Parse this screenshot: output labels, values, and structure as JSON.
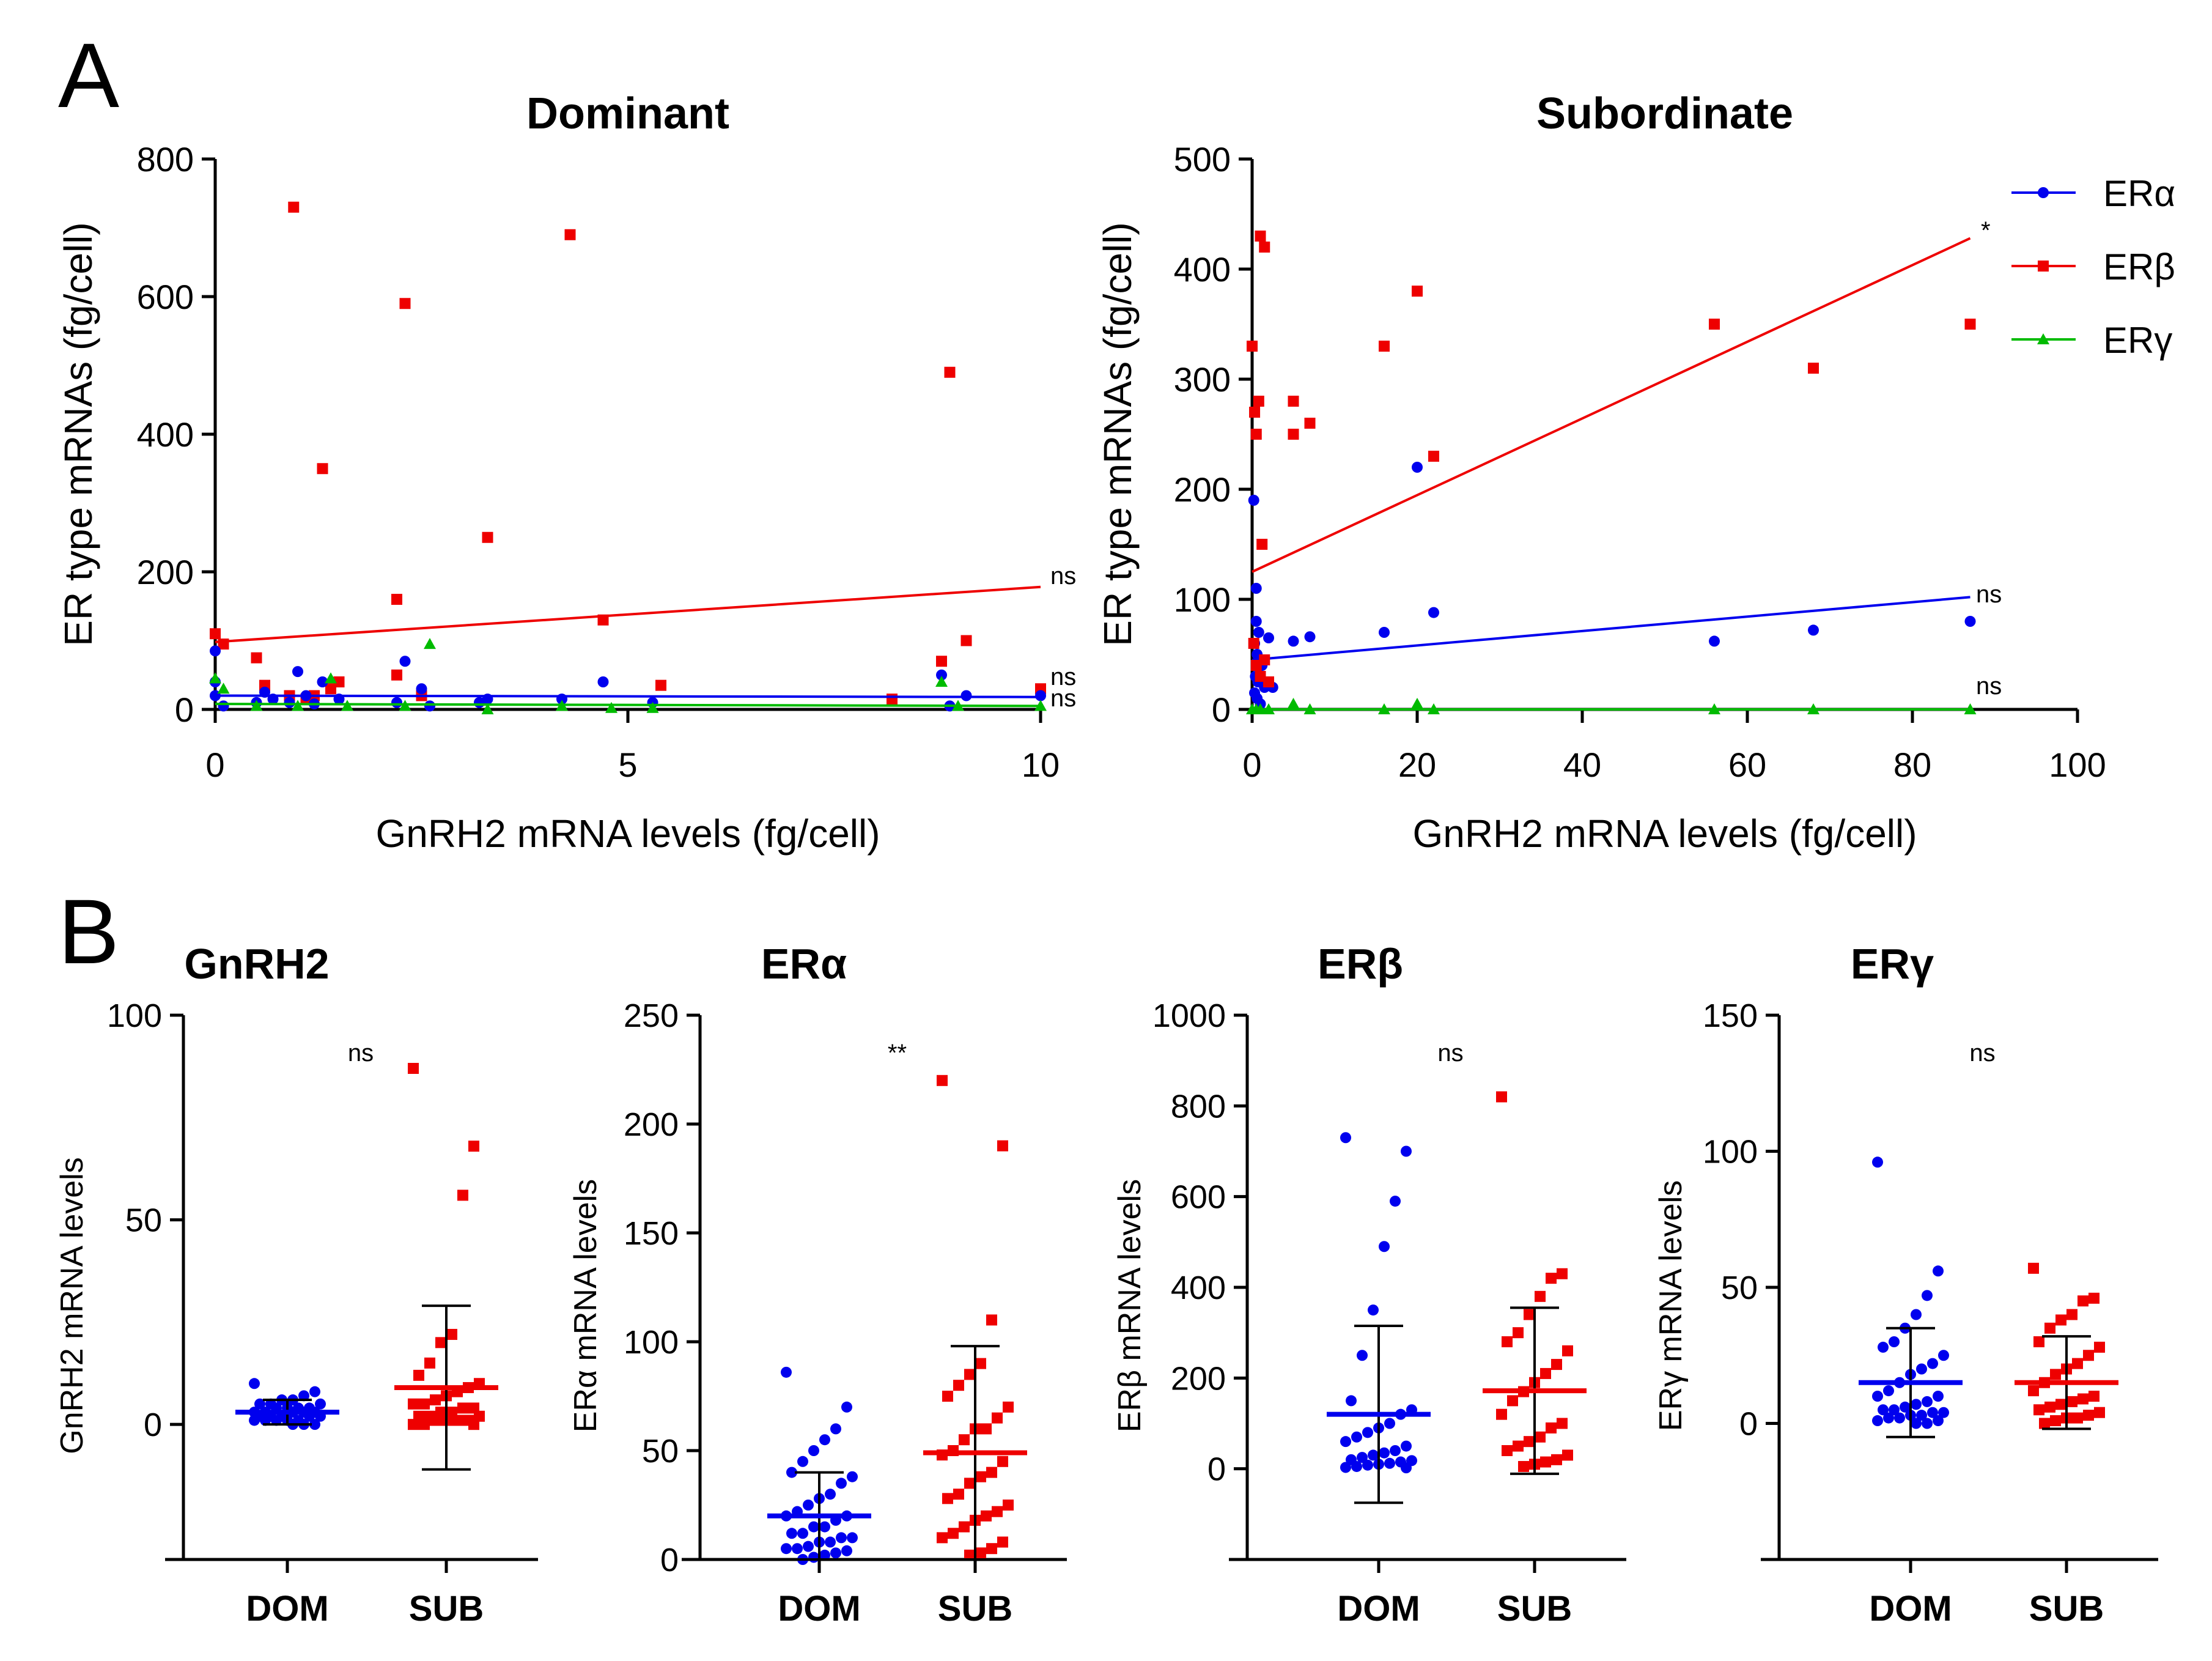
{
  "panels": {
    "a": "A",
    "b": "B"
  },
  "colors": {
    "era": "#0000ee",
    "erb": "#ee0000",
    "erg": "#00bb00"
  },
  "chart_data": [
    {
      "id": "A-dominant",
      "type": "scatter",
      "title": "Dominant",
      "xlabel": "GnRH2 mRNA levels (fg/cell)",
      "ylabel": "ER type mRNAs (fg/cell)",
      "xlim": [
        0,
        10
      ],
      "ylim": [
        0,
        800
      ],
      "xticks": [
        "0",
        "5",
        "10"
      ],
      "yticks": [
        "0",
        "200",
        "400",
        "600",
        "800"
      ],
      "series": [
        {
          "name": "ERβ",
          "color": "#ee0000",
          "marker": "square",
          "points": [
            [
              0,
              110
            ],
            [
              0.1,
              95
            ],
            [
              0.5,
              75
            ],
            [
              0.6,
              35
            ],
            [
              0.9,
              20
            ],
            [
              0.95,
              730
            ],
            [
              1.1,
              15
            ],
            [
              1.2,
              20
            ],
            [
              1.3,
              350
            ],
            [
              1.4,
              30
            ],
            [
              1.5,
              40
            ],
            [
              2.2,
              160
            ],
            [
              2.2,
              50
            ],
            [
              2.3,
              590
            ],
            [
              2.5,
              20
            ],
            [
              3.3,
              250
            ],
            [
              4.3,
              690
            ],
            [
              4.7,
              130
            ],
            [
              5.4,
              35
            ],
            [
              8.2,
              15
            ],
            [
              8.8,
              70
            ],
            [
              8.9,
              490
            ],
            [
              9.1,
              100
            ],
            [
              10,
              30
            ]
          ],
          "fit": [
            [
              0,
              98
            ],
            [
              10,
              178
            ]
          ],
          "sig": "ns"
        },
        {
          "name": "ERα",
          "color": "#0000ee",
          "marker": "circle",
          "points": [
            [
              0,
              85
            ],
            [
              0,
              40
            ],
            [
              0,
              20
            ],
            [
              0.1,
              5
            ],
            [
              0.5,
              10
            ],
            [
              0.6,
              25
            ],
            [
              0.7,
              15
            ],
            [
              0.9,
              10
            ],
            [
              1.0,
              55
            ],
            [
              1.1,
              20
            ],
            [
              1.2,
              8
            ],
            [
              1.3,
              40
            ],
            [
              1.5,
              15
            ],
            [
              2.2,
              10
            ],
            [
              2.3,
              70
            ],
            [
              2.5,
              30
            ],
            [
              2.6,
              5
            ],
            [
              3.2,
              10
            ],
            [
              3.3,
              15
            ],
            [
              4.2,
              15
            ],
            [
              4.7,
              40
            ],
            [
              5.3,
              10
            ],
            [
              8.8,
              50
            ],
            [
              8.9,
              5
            ],
            [
              9.1,
              20
            ],
            [
              10,
              20
            ]
          ],
          "fit": [
            [
              0,
              20
            ],
            [
              10,
              18
            ]
          ],
          "sig": "ns"
        },
        {
          "name": "ERγ",
          "color": "#00bb00",
          "marker": "triangle",
          "points": [
            [
              0,
              45
            ],
            [
              0.1,
              30
            ],
            [
              0.5,
              5
            ],
            [
              1.0,
              5
            ],
            [
              1.4,
              45
            ],
            [
              1.6,
              5
            ],
            [
              2.3,
              5
            ],
            [
              2.6,
              95
            ],
            [
              3.3,
              0
            ],
            [
              4.2,
              5
            ],
            [
              4.8,
              2
            ],
            [
              5.3,
              2
            ],
            [
              8.8,
              40
            ],
            [
              9.0,
              5
            ],
            [
              10,
              5
            ]
          ],
          "fit": [
            [
              0,
              8
            ],
            [
              10,
              5
            ]
          ],
          "sig": "ns"
        }
      ]
    },
    {
      "id": "A-subordinate",
      "type": "scatter",
      "title": "Subordinate",
      "xlabel": "GnRH2 mRNA levels (fg/cell)",
      "ylabel": "ER type mRNAs (fg/cell)",
      "xlim": [
        0,
        100
      ],
      "ylim": [
        0,
        500
      ],
      "xticks": [
        "0",
        "20",
        "40",
        "60",
        "80",
        "100"
      ],
      "yticks": [
        "0",
        "100",
        "200",
        "300",
        "400",
        "500"
      ],
      "legend": {
        "position": "top-right",
        "entries": [
          "ERα",
          "ERβ",
          "ERγ"
        ]
      },
      "series": [
        {
          "name": "ERα",
          "color": "#0000ee",
          "marker": "circle",
          "points": [
            [
              0.2,
              190
            ],
            [
              0.5,
              110
            ],
            [
              0.5,
              80
            ],
            [
              0.8,
              70
            ],
            [
              0.3,
              60
            ],
            [
              0.6,
              50
            ],
            [
              1.0,
              45
            ],
            [
              1.2,
              40
            ],
            [
              0.4,
              30
            ],
            [
              0.7,
              25
            ],
            [
              1.5,
              20
            ],
            [
              0.3,
              15
            ],
            [
              0.6,
              10
            ],
            [
              1.0,
              5
            ],
            [
              2.0,
              65
            ],
            [
              2.5,
              20
            ],
            [
              5,
              62
            ],
            [
              7,
              66
            ],
            [
              16,
              70
            ],
            [
              20,
              220
            ],
            [
              22,
              88
            ],
            [
              56,
              62
            ],
            [
              68,
              72
            ],
            [
              87,
              80
            ]
          ],
          "fit": [
            [
              0,
              45
            ],
            [
              87,
              102
            ]
          ],
          "sig": "ns"
        },
        {
          "name": "ERβ",
          "color": "#ee0000",
          "marker": "square",
          "points": [
            [
              0,
              330
            ],
            [
              0.3,
              270
            ],
            [
              0.5,
              250
            ],
            [
              0.8,
              280
            ],
            [
              1.0,
              430
            ],
            [
              1.2,
              150
            ],
            [
              1.5,
              420
            ],
            [
              0.2,
              60
            ],
            [
              0.5,
              40
            ],
            [
              1.0,
              30
            ],
            [
              1.5,
              45
            ],
            [
              2.0,
              25
            ],
            [
              5,
              280
            ],
            [
              5,
              250
            ],
            [
              7,
              260
            ],
            [
              16,
              330
            ],
            [
              20,
              380
            ],
            [
              22,
              230
            ],
            [
              56,
              350
            ],
            [
              68,
              310
            ],
            [
              87,
              350
            ]
          ],
          "fit": [
            [
              0,
              125
            ],
            [
              87,
              428
            ]
          ],
          "sig": "*"
        },
        {
          "name": "ERγ",
          "color": "#00bb00",
          "marker": "triangle",
          "points": [
            [
              0,
              0
            ],
            [
              0.5,
              0
            ],
            [
              1,
              0
            ],
            [
              2,
              0
            ],
            [
              5,
              5
            ],
            [
              7,
              0
            ],
            [
              16,
              0
            ],
            [
              20,
              5
            ],
            [
              22,
              0
            ],
            [
              56,
              0
            ],
            [
              68,
              0
            ],
            [
              87,
              0
            ]
          ],
          "fit": [
            [
              0,
              0
            ],
            [
              87,
              0
            ]
          ],
          "sig": "ns"
        }
      ]
    },
    {
      "id": "B-GnRH2",
      "type": "scatter-dot",
      "title": "GnRH2",
      "ylabel": "GnRH2 mRNA levels",
      "ylim": [
        -33,
        100
      ],
      "yticks": [
        "0",
        "50",
        "100"
      ],
      "categories": [
        "DOM",
        "SUB"
      ],
      "groups": [
        {
          "name": "DOM",
          "color": "#0000ee",
          "mean": 3,
          "sd": 3,
          "values": [
            10,
            8,
            7,
            6,
            6,
            5,
            5,
            5,
            4,
            4,
            4,
            4,
            3,
            3,
            3,
            3,
            3,
            2,
            2,
            2,
            2,
            2,
            1,
            1,
            1,
            1,
            1,
            0,
            0,
            0
          ]
        },
        {
          "name": "SUB",
          "color": "#ee0000",
          "mean": 9,
          "sd": 20,
          "values": [
            87,
            68,
            56,
            22,
            20,
            15,
            12,
            10,
            9,
            8,
            7,
            6,
            5,
            5,
            4,
            4,
            3,
            3,
            2,
            2,
            2,
            1,
            1,
            1,
            1,
            0,
            0,
            0
          ]
        }
      ],
      "sig": "ns"
    },
    {
      "id": "B-ERa",
      "type": "scatter-dot",
      "title": "ERα",
      "ylabel": "ERα mRNA levels",
      "ylim": [
        0,
        250
      ],
      "yticks": [
        "0",
        "50",
        "100",
        "150",
        "200",
        "250"
      ],
      "categories": [
        "DOM",
        "SUB"
      ],
      "groups": [
        {
          "name": "DOM",
          "color": "#0000ee",
          "mean": 20,
          "sd": 20,
          "values": [
            86,
            70,
            60,
            55,
            50,
            45,
            40,
            38,
            35,
            30,
            28,
            25,
            22,
            20,
            20,
            18,
            15,
            15,
            12,
            12,
            10,
            10,
            8,
            8,
            6,
            5,
            5,
            4,
            3,
            2,
            1,
            0
          ]
        },
        {
          "name": "SUB",
          "color": "#ee0000",
          "mean": 49,
          "sd": 49,
          "values": [
            220,
            190,
            110,
            90,
            85,
            80,
            75,
            70,
            65,
            60,
            60,
            55,
            50,
            48,
            45,
            40,
            38,
            35,
            30,
            28,
            25,
            22,
            20,
            18,
            15,
            12,
            10,
            8,
            5,
            3,
            2
          ]
        }
      ],
      "sig": "**"
    },
    {
      "id": "B-ERb",
      "type": "scatter-dot",
      "title": "ERβ",
      "ylabel": "ERβ mRNA levels",
      "ylim": [
        -200,
        1000
      ],
      "yticks": [
        "0",
        "200",
        "400",
        "600",
        "800",
        "1000"
      ],
      "categories": [
        "DOM",
        "SUB"
      ],
      "groups": [
        {
          "name": "DOM",
          "color": "#0000ee",
          "mean": 120,
          "sd": 195,
          "values": [
            730,
            700,
            590,
            490,
            350,
            250,
            150,
            130,
            120,
            100,
            90,
            80,
            70,
            60,
            50,
            40,
            35,
            30,
            25,
            20,
            18,
            15,
            12,
            10,
            8,
            5,
            3,
            2
          ]
        },
        {
          "name": "SUB",
          "color": "#ee0000",
          "mean": 172,
          "sd": 183,
          "values": [
            820,
            430,
            420,
            380,
            340,
            300,
            280,
            260,
            230,
            210,
            190,
            170,
            150,
            120,
            100,
            90,
            70,
            60,
            50,
            40,
            30,
            20,
            15,
            10,
            5
          ]
        }
      ],
      "sig": "ns"
    },
    {
      "id": "B-ERg",
      "type": "scatter-dot",
      "title": "ERγ",
      "ylabel": "ERγ mRNA levels",
      "ylim": [
        -50,
        150
      ],
      "yticks": [
        "0",
        "50",
        "100",
        "150"
      ],
      "categories": [
        "DOM",
        "SUB"
      ],
      "groups": [
        {
          "name": "DOM",
          "color": "#0000ee",
          "mean": 15,
          "sd": 20,
          "values": [
            96,
            56,
            47,
            40,
            35,
            30,
            28,
            25,
            22,
            20,
            18,
            15,
            12,
            10,
            10,
            8,
            7,
            6,
            5,
            5,
            4,
            4,
            3,
            3,
            2,
            2,
            1,
            1,
            0,
            0
          ]
        },
        {
          "name": "SUB",
          "color": "#ee0000",
          "mean": 15,
          "sd": 17,
          "values": [
            57,
            46,
            45,
            40,
            38,
            35,
            30,
            28,
            25,
            22,
            20,
            18,
            15,
            12,
            10,
            9,
            8,
            7,
            6,
            5,
            4,
            3,
            2,
            2,
            1,
            0
          ]
        }
      ],
      "sig": "ns"
    }
  ]
}
